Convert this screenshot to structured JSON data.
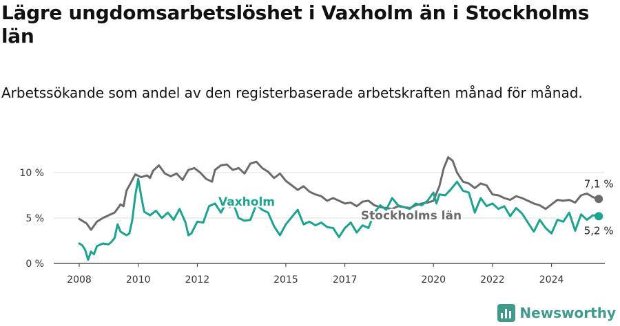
{
  "header": {
    "title": "Lägre ungdomsarbetslöshet i Vaxholm än i Stockholms län",
    "subtitle": "Arbetssökande som andel av den registerbaserade arbetskraften månad för månad."
  },
  "brand": {
    "name": "Newsworthy",
    "icon": "newsworthy-logo-icon",
    "color": "#3d9a8c"
  },
  "chart_data": {
    "type": "line",
    "title": "Lägre ungdomsarbetslöshet i Vaxholm än i Stockholms län",
    "subtitle": "Arbetssökande som andel av den registerbaserade arbetskraften månad för månad.",
    "ylim": [
      0,
      10
    ],
    "ytick_labels": [
      "0 %",
      "5 %",
      "10 %"
    ],
    "yticks": [
      0,
      5,
      10
    ],
    "xtick_labels": [
      "2008",
      "2010",
      "2012",
      "2015",
      "2017",
      "2020",
      "2022",
      "2024"
    ],
    "xticks": [
      2008,
      2010,
      2012,
      2015,
      2017,
      2020,
      2022,
      2024
    ],
    "grid": "horizontal",
    "legend": "inline labels",
    "series": [
      {
        "name": "Stockholms län",
        "color": "#6b6b6b",
        "end_label": "7,1 %",
        "points": [
          [
            2008.0,
            4.9
          ],
          [
            2008.25,
            4.4
          ],
          [
            2008.4,
            3.7
          ],
          [
            2008.6,
            4.6
          ],
          [
            2008.8,
            5.0
          ],
          [
            2009.0,
            5.3
          ],
          [
            2009.2,
            5.6
          ],
          [
            2009.4,
            6.5
          ],
          [
            2009.5,
            6.3
          ],
          [
            2009.6,
            8.0
          ],
          [
            2009.8,
            9.2
          ],
          [
            2009.9,
            9.8
          ],
          [
            2010.1,
            9.5
          ],
          [
            2010.3,
            9.7
          ],
          [
            2010.4,
            9.4
          ],
          [
            2010.5,
            10.2
          ],
          [
            2010.7,
            10.8
          ],
          [
            2010.9,
            9.9
          ],
          [
            2011.1,
            9.6
          ],
          [
            2011.3,
            9.9
          ],
          [
            2011.5,
            9.2
          ],
          [
            2011.7,
            10.3
          ],
          [
            2011.9,
            10.5
          ],
          [
            2012.1,
            10.0
          ],
          [
            2012.3,
            9.3
          ],
          [
            2012.5,
            9.0
          ],
          [
            2012.6,
            10.3
          ],
          [
            2012.8,
            10.8
          ],
          [
            2013.0,
            10.9
          ],
          [
            2013.2,
            10.3
          ],
          [
            2013.4,
            10.5
          ],
          [
            2013.6,
            9.9
          ],
          [
            2013.8,
            11.0
          ],
          [
            2014.0,
            11.2
          ],
          [
            2014.2,
            10.5
          ],
          [
            2014.4,
            10.1
          ],
          [
            2014.6,
            9.4
          ],
          [
            2014.8,
            9.9
          ],
          [
            2015.0,
            9.1
          ],
          [
            2015.2,
            8.6
          ],
          [
            2015.4,
            8.1
          ],
          [
            2015.6,
            8.5
          ],
          [
            2015.8,
            7.9
          ],
          [
            2016.0,
            7.6
          ],
          [
            2016.2,
            7.4
          ],
          [
            2016.4,
            6.9
          ],
          [
            2016.6,
            7.2
          ],
          [
            2016.8,
            6.9
          ],
          [
            2017.0,
            6.6
          ],
          [
            2017.2,
            6.7
          ],
          [
            2017.4,
            6.3
          ],
          [
            2017.6,
            6.8
          ],
          [
            2017.8,
            6.9
          ],
          [
            2018.0,
            6.4
          ],
          [
            2018.2,
            6.2
          ],
          [
            2018.4,
            6.1
          ],
          [
            2018.6,
            6.0
          ],
          [
            2018.8,
            6.3
          ],
          [
            2019.0,
            6.2
          ],
          [
            2019.2,
            6.1
          ],
          [
            2019.4,
            6.4
          ],
          [
            2019.6,
            6.6
          ],
          [
            2019.8,
            6.7
          ],
          [
            2020.0,
            6.9
          ],
          [
            2020.2,
            8.5
          ],
          [
            2020.35,
            10.5
          ],
          [
            2020.5,
            11.7
          ],
          [
            2020.65,
            11.3
          ],
          [
            2020.8,
            10.0
          ],
          [
            2021.0,
            9.0
          ],
          [
            2021.2,
            8.8
          ],
          [
            2021.4,
            8.3
          ],
          [
            2021.6,
            8.8
          ],
          [
            2021.8,
            8.6
          ],
          [
            2022.0,
            7.6
          ],
          [
            2022.2,
            7.5
          ],
          [
            2022.4,
            7.2
          ],
          [
            2022.6,
            7.0
          ],
          [
            2022.8,
            7.4
          ],
          [
            2023.0,
            7.2
          ],
          [
            2023.2,
            6.9
          ],
          [
            2023.4,
            6.6
          ],
          [
            2023.6,
            6.4
          ],
          [
            2023.8,
            6.0
          ],
          [
            2024.0,
            6.5
          ],
          [
            2024.2,
            7.0
          ],
          [
            2024.4,
            6.9
          ],
          [
            2024.6,
            7.0
          ],
          [
            2024.8,
            6.7
          ],
          [
            2025.0,
            7.5
          ],
          [
            2025.2,
            7.7
          ],
          [
            2025.4,
            7.3
          ],
          [
            2025.6,
            7.1
          ]
        ]
      },
      {
        "name": "Vaxholm",
        "color": "#1aa391",
        "end_label": "5,2 %",
        "points": [
          [
            2008.0,
            2.2
          ],
          [
            2008.1,
            2.0
          ],
          [
            2008.2,
            1.5
          ],
          [
            2008.3,
            0.4
          ],
          [
            2008.4,
            1.3
          ],
          [
            2008.5,
            1.0
          ],
          [
            2008.6,
            1.9
          ],
          [
            2008.8,
            2.2
          ],
          [
            2009.0,
            2.1
          ],
          [
            2009.1,
            2.4
          ],
          [
            2009.2,
            2.8
          ],
          [
            2009.3,
            4.3
          ],
          [
            2009.4,
            3.5
          ],
          [
            2009.6,
            3.1
          ],
          [
            2009.7,
            3.3
          ],
          [
            2009.8,
            4.8
          ],
          [
            2009.9,
            7.5
          ],
          [
            2010.0,
            9.3
          ],
          [
            2010.1,
            7.4
          ],
          [
            2010.2,
            5.7
          ],
          [
            2010.4,
            5.3
          ],
          [
            2010.6,
            5.8
          ],
          [
            2010.8,
            5.0
          ],
          [
            2011.0,
            5.6
          ],
          [
            2011.2,
            4.8
          ],
          [
            2011.4,
            6.0
          ],
          [
            2011.6,
            4.5
          ],
          [
            2011.7,
            3.1
          ],
          [
            2011.8,
            3.3
          ],
          [
            2012.0,
            4.6
          ],
          [
            2012.2,
            4.5
          ],
          [
            2012.4,
            6.3
          ],
          [
            2012.6,
            6.6
          ],
          [
            2012.8,
            5.6
          ],
          [
            2012.9,
            6.2
          ],
          [
            2013.0,
            6.8
          ],
          [
            2013.1,
            6.2
          ],
          [
            2013.2,
            6.8
          ],
          [
            2013.4,
            5.0
          ],
          [
            2013.6,
            4.7
          ],
          [
            2013.8,
            4.8
          ],
          [
            2014.0,
            6.5
          ],
          [
            2014.2,
            5.9
          ],
          [
            2014.4,
            5.6
          ],
          [
            2014.6,
            4.1
          ],
          [
            2014.8,
            3.1
          ],
          [
            2015.0,
            4.3
          ],
          [
            2015.2,
            5.1
          ],
          [
            2015.4,
            5.9
          ],
          [
            2015.6,
            4.3
          ],
          [
            2015.8,
            4.6
          ],
          [
            2016.0,
            4.2
          ],
          [
            2016.2,
            4.5
          ],
          [
            2016.4,
            4.0
          ],
          [
            2016.6,
            3.9
          ],
          [
            2016.8,
            2.9
          ],
          [
            2017.0,
            3.9
          ],
          [
            2017.2,
            4.5
          ],
          [
            2017.4,
            3.4
          ],
          [
            2017.6,
            4.2
          ],
          [
            2017.8,
            3.9
          ],
          [
            2018.0,
            5.6
          ],
          [
            2018.2,
            6.4
          ],
          [
            2018.4,
            5.9
          ],
          [
            2018.6,
            7.2
          ],
          [
            2018.8,
            6.4
          ],
          [
            2019.0,
            6.2
          ],
          [
            2019.2,
            6.0
          ],
          [
            2019.4,
            6.6
          ],
          [
            2019.6,
            6.4
          ],
          [
            2019.8,
            6.9
          ],
          [
            2020.0,
            7.8
          ],
          [
            2020.1,
            6.6
          ],
          [
            2020.2,
            7.6
          ],
          [
            2020.4,
            7.5
          ],
          [
            2020.6,
            8.2
          ],
          [
            2020.8,
            9.0
          ],
          [
            2021.0,
            8.0
          ],
          [
            2021.2,
            7.8
          ],
          [
            2021.4,
            5.6
          ],
          [
            2021.6,
            7.2
          ],
          [
            2021.8,
            6.3
          ],
          [
            2022.0,
            6.6
          ],
          [
            2022.2,
            6.0
          ],
          [
            2022.4,
            6.3
          ],
          [
            2022.6,
            5.2
          ],
          [
            2022.8,
            6.1
          ],
          [
            2023.0,
            5.5
          ],
          [
            2023.2,
            4.5
          ],
          [
            2023.4,
            3.5
          ],
          [
            2023.6,
            4.8
          ],
          [
            2023.8,
            3.9
          ],
          [
            2024.0,
            3.3
          ],
          [
            2024.2,
            4.8
          ],
          [
            2024.4,
            4.6
          ],
          [
            2024.6,
            5.6
          ],
          [
            2024.8,
            3.6
          ],
          [
            2025.0,
            5.4
          ],
          [
            2025.2,
            4.8
          ],
          [
            2025.4,
            5.3
          ],
          [
            2025.6,
            5.2
          ]
        ]
      }
    ]
  }
}
